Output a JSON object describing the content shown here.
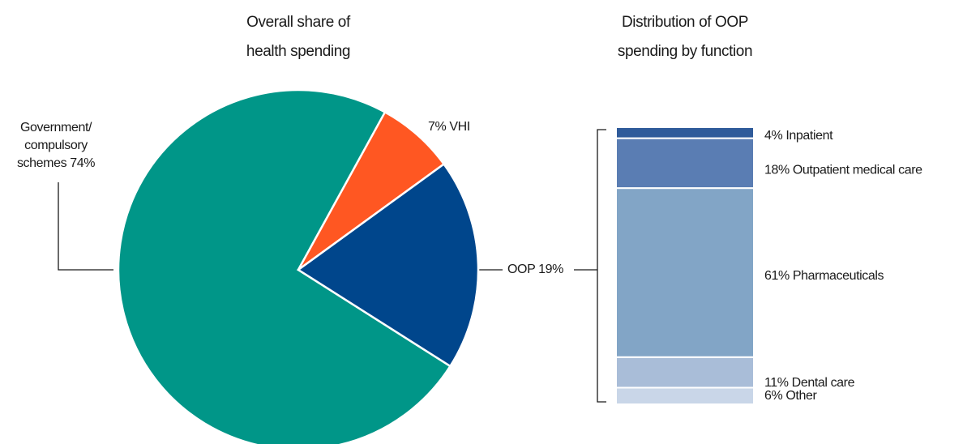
{
  "chart_data": [
    {
      "type": "pie",
      "title": "Overall share of health spending",
      "values": [
        74,
        7,
        19
      ],
      "value_labels": [
        "Government/ compulsory schemes 74%",
        "7% VHI",
        "OOP 19%"
      ],
      "colors": [
        "#009688",
        "#ff5722",
        "#00468c"
      ]
    },
    {
      "type": "stacked",
      "title": "Distribution of OOP spending by function",
      "values": [
        4,
        18,
        61,
        11,
        6
      ],
      "value_labels": [
        "4% Inpatient",
        "18% Outpatient medical care",
        "61% Pharmaceuticals",
        "11% Dental care",
        "6% Other"
      ],
      "colors": [
        "#2f5b9a",
        "#5a7db3",
        "#82a5c6",
        "#a9bdd8",
        "#c9d6e8"
      ]
    }
  ]
}
